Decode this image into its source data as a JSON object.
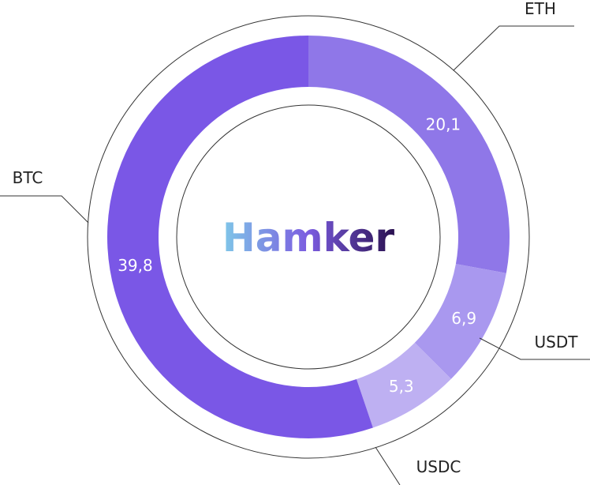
{
  "brand": {
    "text": "Hamker",
    "gradient": [
      "#7fc7e8",
      "#7b5ce0",
      "#2a1150"
    ]
  },
  "chart_data": {
    "type": "pie",
    "variant": "donut",
    "categories": [
      "ETH",
      "USDT",
      "USDC",
      "BTC"
    ],
    "values": [
      20.1,
      6.9,
      5.3,
      39.8
    ],
    "value_labels": [
      "20,1",
      "6,9",
      "5,3",
      "39,8"
    ],
    "colors": [
      "#8f77e8",
      "#a998ef",
      "#beb0f2",
      "#7a57e6"
    ],
    "start_angle": "12 o'clock, clockwise",
    "legend": "none (leader-line labels)"
  }
}
